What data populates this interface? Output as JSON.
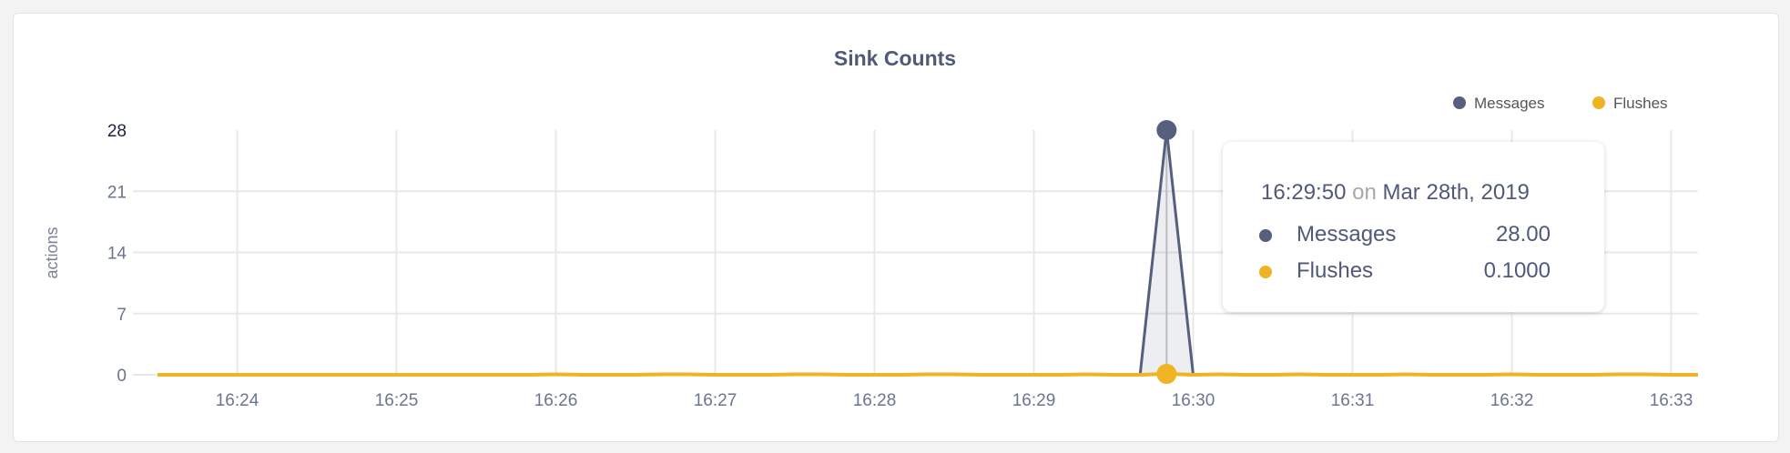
{
  "chart_data": {
    "type": "area",
    "title": "Sink Counts",
    "ylabel": "actions",
    "xlabel": "",
    "ylim": [
      0,
      28
    ],
    "yticks": [
      "0",
      "7",
      "14",
      "21",
      "28"
    ],
    "xticks": [
      "16:24",
      "16:25",
      "16:26",
      "16:27",
      "16:28",
      "16:29",
      "16:30",
      "16:31",
      "16:32",
      "16:33"
    ],
    "grid": true,
    "legend_position": "top-right",
    "x": [
      "16:23:30",
      "16:23:40",
      "16:23:50",
      "16:24:00",
      "16:24:10",
      "16:24:20",
      "16:24:30",
      "16:24:40",
      "16:24:50",
      "16:25:00",
      "16:25:10",
      "16:25:20",
      "16:25:30",
      "16:25:40",
      "16:25:50",
      "16:26:00",
      "16:26:10",
      "16:26:20",
      "16:26:30",
      "16:26:40",
      "16:26:50",
      "16:27:00",
      "16:27:10",
      "16:27:20",
      "16:27:30",
      "16:27:40",
      "16:27:50",
      "16:28:00",
      "16:28:10",
      "16:28:20",
      "16:28:30",
      "16:28:40",
      "16:28:50",
      "16:29:00",
      "16:29:10",
      "16:29:20",
      "16:29:30",
      "16:29:40",
      "16:29:50",
      "16:30:00",
      "16:30:10",
      "16:30:20",
      "16:30:30",
      "16:30:40",
      "16:30:50",
      "16:31:00",
      "16:31:10",
      "16:31:20",
      "16:31:30",
      "16:31:40",
      "16:31:50",
      "16:32:00",
      "16:32:10",
      "16:32:20",
      "16:32:30",
      "16:32:40",
      "16:32:50",
      "16:33:00",
      "16:33:10"
    ],
    "series": [
      {
        "name": "Messages",
        "color": "#56607e",
        "values": [
          0,
          0,
          0,
          0,
          0,
          0,
          0,
          0,
          0,
          0,
          0,
          0,
          0,
          0,
          0,
          0,
          0,
          0,
          0,
          0,
          0,
          0,
          0,
          0,
          0,
          0,
          0,
          0,
          0,
          0,
          0,
          0,
          0,
          0,
          0,
          0,
          0,
          0,
          28,
          0,
          0,
          0,
          0,
          0,
          0,
          0,
          0,
          0,
          0,
          0,
          0,
          0,
          0,
          0,
          0,
          0,
          0,
          0,
          0
        ]
      },
      {
        "name": "Flushes",
        "color": "#f0b323",
        "values": [
          0,
          0,
          0,
          0,
          0,
          0,
          0,
          0,
          0,
          0,
          0,
          0,
          0,
          0,
          0,
          0.05,
          0,
          0,
          0,
          0.05,
          0.05,
          0,
          0,
          0,
          0.05,
          0.05,
          0,
          0,
          0,
          0.05,
          0.05,
          0,
          0,
          0,
          0,
          0.05,
          0,
          0,
          0.1,
          0,
          0.05,
          0,
          0,
          0.05,
          0,
          0,
          0,
          0.05,
          0,
          0,
          0,
          0.05,
          0,
          0,
          0,
          0.05,
          0.05,
          0,
          0
        ]
      }
    ]
  },
  "tooltip": {
    "time": "16:29:50",
    "on": "on",
    "date": "Mar 28th, 2019",
    "rows": [
      {
        "label": "Messages",
        "value": "28.00",
        "color": "#56607e"
      },
      {
        "label": "Flushes",
        "value": "0.1000",
        "color": "#f0b323"
      }
    ]
  }
}
